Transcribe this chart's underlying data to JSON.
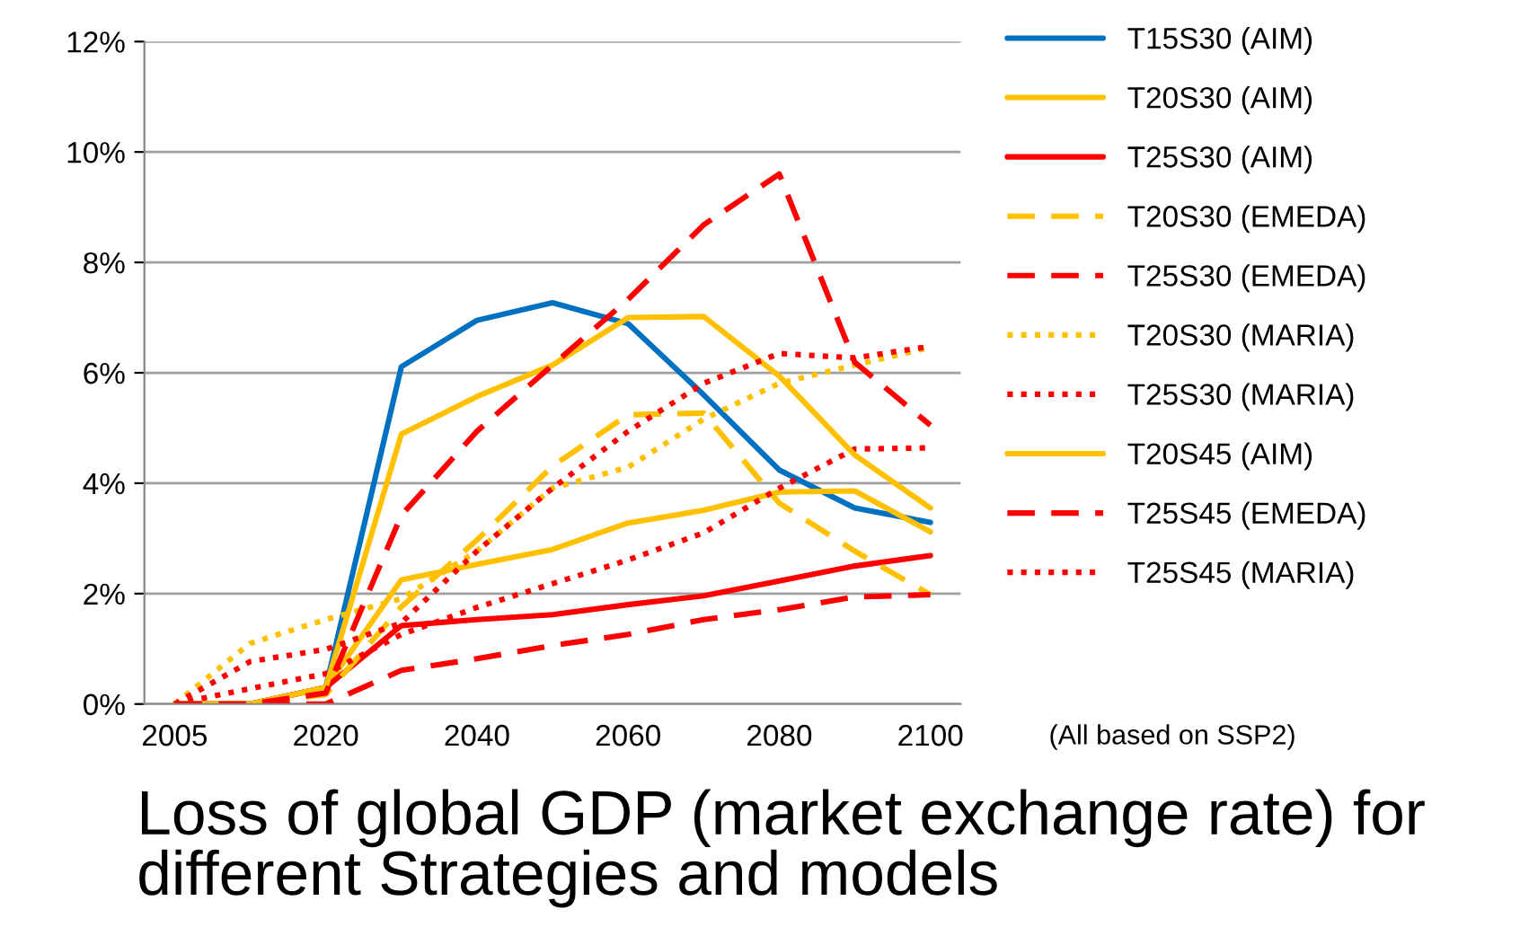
{
  "chart_data": {
    "type": "line",
    "title": "Loss of global GDP (market exchange rate) for different Strategies and models",
    "categories": [
      "2005",
      null,
      "2020",
      null,
      "2040",
      null,
      "2060",
      null,
      "2080",
      null,
      "2100"
    ],
    "ylim": [
      0,
      12
    ],
    "yticks": [
      {
        "value": 0,
        "label": "0%"
      },
      {
        "value": 2,
        "label": "2%"
      },
      {
        "value": 4,
        "label": "4%"
      },
      {
        "value": 6,
        "label": "6%"
      },
      {
        "value": 8,
        "label": "8%"
      },
      {
        "value": 10,
        "label": "10%"
      },
      {
        "value": 12,
        "label": "12%"
      }
    ],
    "grid": "y",
    "legend": "right",
    "marker": "none",
    "annotations": [
      "(All based on SSP2)"
    ],
    "series": [
      {
        "name": "T15S30 (AIM)",
        "color": "#0070c0",
        "line_style": "solid",
        "values": [
          0,
          0,
          0.3,
          6.11,
          6.95,
          7.27,
          6.89,
          5.6,
          4.24,
          3.55,
          3.29
        ]
      },
      {
        "name": "T20S30 (AIM)",
        "color": "#ffc000",
        "line_style": "solid",
        "values": [
          0,
          0,
          0.3,
          2.25,
          2.53,
          2.8,
          3.28,
          3.51,
          3.84,
          3.86,
          3.12
        ]
      },
      {
        "name": "T25S30 (AIM)",
        "color": "#ff0000",
        "line_style": "solid",
        "values": [
          0,
          0,
          0.3,
          1.42,
          1.53,
          1.62,
          1.8,
          1.96,
          2.23,
          2.5,
          2.69
        ]
      },
      {
        "name": "T20S30 (EMEDA)",
        "color": "#ffc000",
        "line_style": "dashed",
        "values": [
          0,
          0,
          0.17,
          1.76,
          2.97,
          4.31,
          5.24,
          5.27,
          3.64,
          2.77,
          1.98
        ]
      },
      {
        "name": "T25S30 (EMEDA)",
        "color": "#ff0000",
        "line_style": "dashed",
        "values": [
          0,
          0,
          0,
          0.61,
          0.82,
          1.06,
          1.26,
          1.53,
          1.71,
          1.94,
          1.98
        ]
      },
      {
        "name": "T20S30 (MARIA)",
        "color": "#ffc000",
        "line_style": "dotted",
        "values": [
          0,
          1.1,
          1.53,
          1.91,
          2.77,
          3.91,
          4.29,
          5.16,
          5.81,
          6.14,
          6.46
        ]
      },
      {
        "name": "T25S30 (MARIA)",
        "color": "#ff0000",
        "line_style": "dotted",
        "values": [
          0,
          0.28,
          0.55,
          1.26,
          1.75,
          2.18,
          2.61,
          3.1,
          3.91,
          4.62,
          4.64
        ]
      },
      {
        "name": "T20S45 (AIM)",
        "color": "#ffc000",
        "line_style": "solid",
        "values": [
          0,
          0,
          0.3,
          4.89,
          5.57,
          6.14,
          7.0,
          7.02,
          5.94,
          4.51,
          3.55
        ]
      },
      {
        "name": "T25S45 (EMEDA)",
        "color": "#ff0000",
        "line_style": "dashed",
        "values": [
          0,
          0,
          0.2,
          3.42,
          4.94,
          6.14,
          7.33,
          8.68,
          9.6,
          6.19,
          5.05
        ]
      },
      {
        "name": "T25S45 (MARIA)",
        "color": "#ff0000",
        "line_style": "dotted",
        "values": [
          0,
          0.77,
          0.99,
          1.47,
          2.77,
          3.91,
          4.94,
          5.81,
          6.35,
          6.27,
          6.48
        ]
      }
    ]
  }
}
